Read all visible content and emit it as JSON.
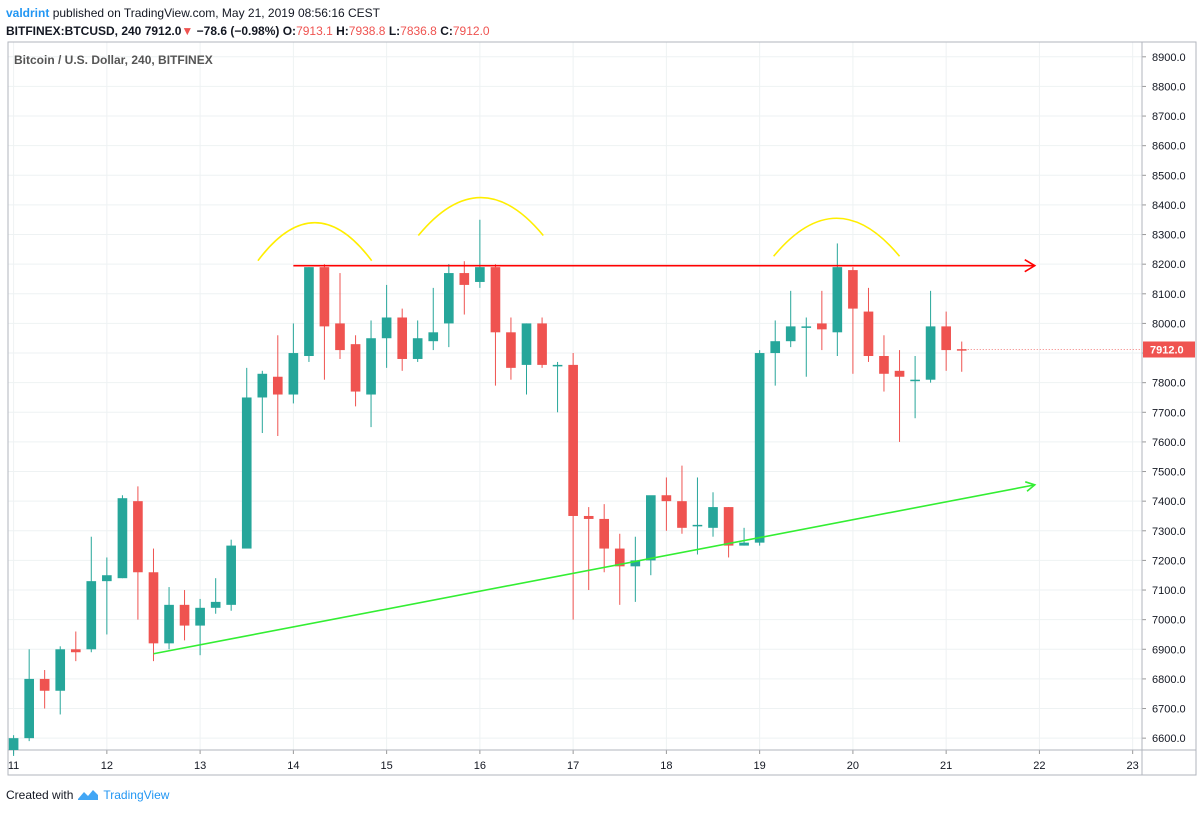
{
  "header": {
    "user": "valdrint",
    "published_text": "published on TradingView.com, May 21, 2019 08:56:16 CEST",
    "symbol": "BITFINEX:BTCUSD, 240",
    "last": "7912.0",
    "change": "−78.6 (−0.98%)",
    "o_label": "O:",
    "o_val": "7913.1",
    "h_label": "H:",
    "h_val": "7938.8",
    "l_label": "L:",
    "l_val": "7836.8",
    "c_label": "C:",
    "c_val": "7912.0"
  },
  "legend_title": "Bitcoin / U.S. Dollar, 240, BITFINEX",
  "footer": {
    "created_with": "Created with",
    "brand": "TradingView"
  },
  "colors": {
    "up": "#26a69a",
    "down": "#ef5350",
    "resistance": "#ff0000",
    "support": "#33ee33",
    "arc": "#ffee00",
    "grid": "#eef2f3"
  },
  "chart_data": {
    "type": "candlestick",
    "title": "Bitcoin / U.S. Dollar, 240, BITFINEX",
    "ylim": [
      6560,
      8950
    ],
    "y_ticks": [
      "6600.0",
      "6700.0",
      "6800.0",
      "6900.0",
      "7000.0",
      "7100.0",
      "7200.0",
      "7300.0",
      "7400.0",
      "7500.0",
      "7600.0",
      "7700.0",
      "7800.0",
      "7900.0",
      "8000.0",
      "8100.0",
      "8200.0",
      "8300.0",
      "8400.0",
      "8500.0",
      "8600.0",
      "8700.0",
      "8800.0",
      "8900.0"
    ],
    "x_ticks": [
      "11",
      "12",
      "13",
      "14",
      "15",
      "16",
      "17",
      "18",
      "19",
      "20",
      "21",
      "22",
      "23"
    ],
    "x_domain": [
      10.94,
      23.1
    ],
    "last_price_label": "7912.0",
    "last_price": 7912,
    "candles": [
      [
        11.0,
        6560,
        6610,
        6540,
        6600
      ],
      [
        11.167,
        6600,
        6900,
        6590,
        6800
      ],
      [
        11.333,
        6800,
        6830,
        6700,
        6760
      ],
      [
        11.5,
        6760,
        6910,
        6680,
        6900
      ],
      [
        11.667,
        6900,
        6960,
        6860,
        6890
      ],
      [
        11.833,
        6900,
        7280,
        6890,
        7130
      ],
      [
        12.0,
        7130,
        7210,
        6950,
        7150
      ],
      [
        12.167,
        7140,
        7420,
        7140,
        7410
      ],
      [
        12.333,
        7400,
        7450,
        7000,
        7160
      ],
      [
        12.5,
        7160,
        7240,
        6860,
        6920
      ],
      [
        12.667,
        6920,
        7110,
        6900,
        7050
      ],
      [
        12.833,
        7050,
        7100,
        6930,
        6980
      ],
      [
        13.0,
        6980,
        7070,
        6880,
        7040
      ],
      [
        13.167,
        7040,
        7140,
        7020,
        7060
      ],
      [
        13.333,
        7050,
        7270,
        7030,
        7250
      ],
      [
        13.5,
        7240,
        7850,
        7240,
        7750
      ],
      [
        13.667,
        7750,
        7840,
        7630,
        7830
      ],
      [
        13.833,
        7820,
        7960,
        7620,
        7760
      ],
      [
        14.0,
        7760,
        8000,
        7730,
        7900
      ],
      [
        14.167,
        7890,
        8190,
        7870,
        8190
      ],
      [
        14.333,
        8190,
        8200,
        7810,
        7990
      ],
      [
        14.5,
        8000,
        8170,
        7880,
        7910
      ],
      [
        14.667,
        7930,
        7960,
        7720,
        7770
      ],
      [
        14.833,
        7760,
        8010,
        7650,
        7950
      ],
      [
        15.0,
        7950,
        8130,
        7850,
        8020
      ],
      [
        15.167,
        8020,
        8050,
        7840,
        7880
      ],
      [
        15.333,
        7880,
        8010,
        7870,
        7950
      ],
      [
        15.5,
        7940,
        8120,
        7910,
        7970
      ],
      [
        15.667,
        8000,
        8200,
        7920,
        8170
      ],
      [
        15.833,
        8170,
        8210,
        8030,
        8130
      ],
      [
        16.0,
        8140,
        8350,
        8120,
        8190
      ],
      [
        16.167,
        8190,
        8200,
        7790,
        7970
      ],
      [
        16.333,
        7970,
        8020,
        7810,
        7850
      ],
      [
        16.5,
        7860,
        8000,
        7760,
        8000
      ],
      [
        16.667,
        8000,
        8020,
        7850,
        7860
      ],
      [
        16.833,
        7860,
        7870,
        7700,
        7860
      ],
      [
        17.0,
        7860,
        7900,
        7000,
        7350
      ],
      [
        17.167,
        7350,
        7380,
        7100,
        7340
      ],
      [
        17.333,
        7340,
        7390,
        7160,
        7240
      ],
      [
        17.5,
        7240,
        7290,
        7050,
        7180
      ],
      [
        17.667,
        7180,
        7280,
        7060,
        7200
      ],
      [
        17.833,
        7200,
        7410,
        7150,
        7420
      ],
      [
        18.0,
        7420,
        7480,
        7300,
        7400
      ],
      [
        18.167,
        7400,
        7520,
        7290,
        7310
      ],
      [
        18.333,
        7320,
        7480,
        7220,
        7320
      ],
      [
        18.5,
        7310,
        7430,
        7280,
        7380
      ],
      [
        18.667,
        7380,
        7380,
        7210,
        7250
      ],
      [
        18.833,
        7250,
        7310,
        7250,
        7260
      ],
      [
        19.0,
        7260,
        7910,
        7250,
        7900
      ],
      [
        19.167,
        7900,
        8010,
        7790,
        7940
      ],
      [
        19.333,
        7940,
        8110,
        7920,
        7990
      ],
      [
        19.5,
        7990,
        8020,
        7820,
        7990
      ],
      [
        19.667,
        8000,
        8110,
        7910,
        7980
      ],
      [
        19.833,
        7970,
        8270,
        7890,
        8190
      ],
      [
        20.0,
        8180,
        8190,
        7830,
        8050
      ],
      [
        20.167,
        8040,
        8120,
        7870,
        7890
      ],
      [
        20.333,
        7890,
        7960,
        7770,
        7830
      ],
      [
        20.5,
        7840,
        7910,
        7600,
        7820
      ],
      [
        20.667,
        7810,
        7890,
        7680,
        7810
      ],
      [
        20.833,
        7810,
        8110,
        7800,
        7990
      ],
      [
        21.0,
        7990,
        8040,
        7840,
        7910
      ],
      [
        21.167,
        7913.1,
        7938.8,
        7836.8,
        7912.0
      ]
    ],
    "resistance_line": {
      "x": [
        14.0,
        21.95
      ],
      "y": [
        8195,
        8195
      ]
    },
    "support_line": {
      "x": [
        12.5,
        21.95
      ],
      "y": [
        6885,
        7455
      ]
    },
    "arcs": [
      {
        "x": [
          13.62,
          14.84
        ],
        "peak": 8340
      },
      {
        "x": [
          15.34,
          16.68
        ],
        "peak": 8425
      },
      {
        "x": [
          19.15,
          20.5
        ],
        "peak": 8355
      }
    ]
  }
}
